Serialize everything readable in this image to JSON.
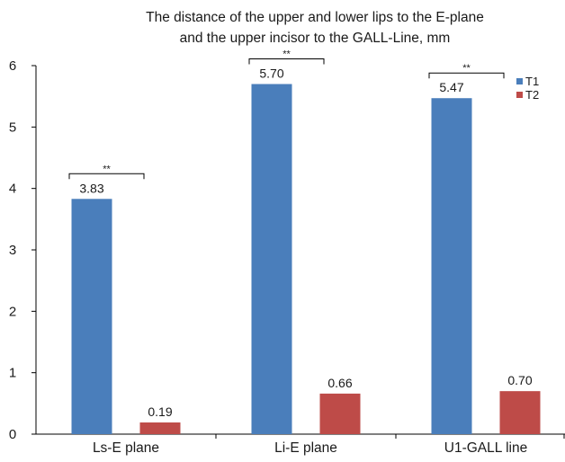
{
  "chart_data": {
    "type": "bar",
    "title_lines": [
      "The distance of the upper and lower lips to the E-plane",
      "and the upper incisor to the GALL-Line, mm"
    ],
    "categories": [
      "Ls-E plane",
      "Li-E plane",
      "U1-GALL line"
    ],
    "series": [
      {
        "name": "T1",
        "values": [
          3.83,
          5.7,
          5.47
        ],
        "labels": [
          "3.83",
          "5.70",
          "5.47"
        ],
        "color": "#4a7ebb"
      },
      {
        "name": "T2",
        "values": [
          0.19,
          0.66,
          0.7
        ],
        "labels": [
          "0.19",
          "0.66",
          "0.70"
        ],
        "color": "#be4b48"
      }
    ],
    "ylim": [
      0,
      6
    ],
    "yticks": [
      "0",
      "1",
      "2",
      "3",
      "4",
      "5",
      "6"
    ],
    "grid": false,
    "legend_position": "top-right",
    "significance_marker": "**",
    "significance_pairs": [
      0,
      1,
      2
    ]
  }
}
